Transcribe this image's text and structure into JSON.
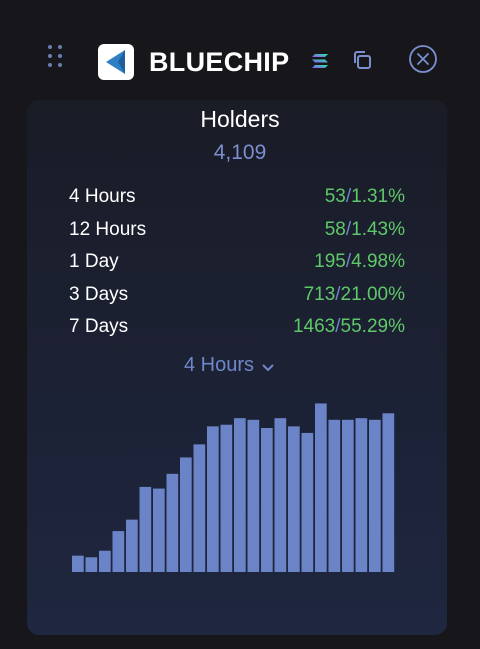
{
  "app": {
    "title": "BLUECHIP",
    "icons": {
      "drag": "drag-handle-icon",
      "logo": "bluechip-logo-icon",
      "chain": "solana-icon",
      "copy": "copy-icon",
      "close": "close-circle-icon"
    }
  },
  "holders": {
    "label": "Holders",
    "count": "4,109"
  },
  "stats": [
    {
      "period": "4 Hours",
      "count": "53",
      "sep": "/",
      "pct": "1.31%"
    },
    {
      "period": "12 Hours",
      "count": "58",
      "sep": "/",
      "pct": "1.43%"
    },
    {
      "period": "1 Day",
      "count": "195",
      "sep": "/",
      "pct": "4.98%"
    },
    {
      "period": "3 Days",
      "count": "713",
      "sep": "/",
      "pct": "21.00%"
    },
    {
      "period": "7 Days",
      "count": "1463",
      "sep": "/",
      "pct": "55.29%"
    }
  ],
  "period_selector": {
    "selected": "4 Hours"
  },
  "colors": {
    "background": "#17171b",
    "bar": "#6b84c8",
    "accent": "#7b8fcf",
    "positive": "#5fc86a"
  },
  "chart_data": {
    "type": "bar",
    "series": [
      {
        "values": [
          10,
          9,
          13,
          25,
          32,
          52,
          51,
          60,
          70,
          78,
          89,
          90,
          94,
          93,
          88,
          94,
          89,
          85,
          103,
          93,
          93,
          94,
          93,
          97
        ]
      }
    ],
    "ylim": [
      0,
      110
    ],
    "grid": false,
    "axes_visible": false
  }
}
